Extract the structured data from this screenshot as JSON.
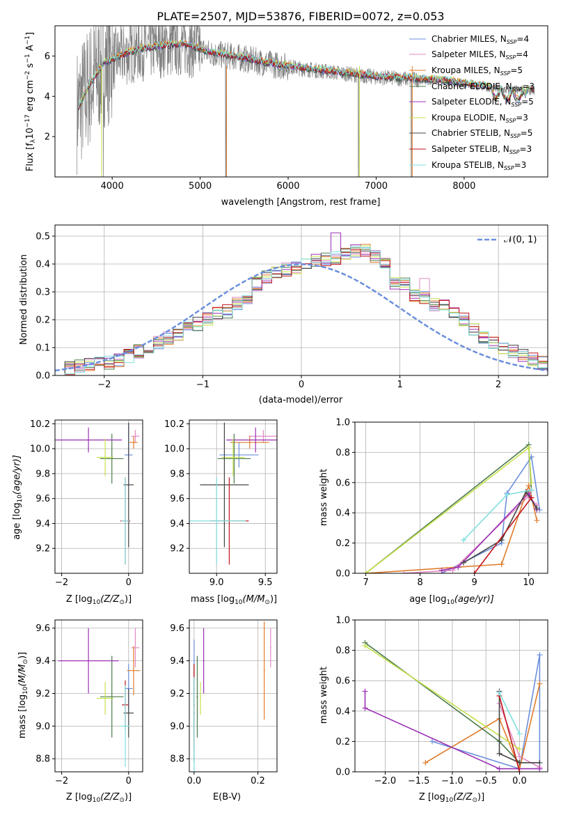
{
  "title": "PLATE=2507, MJD=53876, FIBERID=0072, z=0.053",
  "colors": {
    "Chabrier MILES": "#6b8fdc",
    "Salpeter MILES": "#e28ac4",
    "Kroupa MILES": "#e07b2a",
    "Chabrier ELODIE": "#4a7a4a",
    "Salpeter ELODIE": "#9b2fb4",
    "Kroupa ELODIE": "#c6e04a",
    "Chabrier STELIB": "#444444",
    "Salpeter STELIB": "#c0161b",
    "Kroupa STELIB": "#7fdede",
    "data": "#808080"
  },
  "legend_labels": {
    "l0": "Chabrier MILES, N",
    "l1": "Salpeter MILES, N",
    "l2": "Kroupa MILES, N",
    "l3": "Chabrier ELODIE, N",
    "l4": "Salpeter ELODIE, N",
    "l5": "Kroupa ELODIE, N",
    "l6": "Chabrier STELIB, N",
    "l7": "Salpeter STELIB, N",
    "l8": "Kroupa STELIB, N",
    "sub": "SSP",
    "n0": "=4",
    "n1": "=4",
    "n2": "=5",
    "n3": "=3",
    "n4": "=5",
    "n5": "=3",
    "n6": "=5",
    "n7": "=3",
    "n8": "=3"
  },
  "labels": {
    "spec_xlabel": "wavelength [Angstrom, rest frame]",
    "spec_ylabel": "Flux [f",
    "spec_ylabel_sub": "λ",
    "spec_ylabel_rest": "10",
    "spec_ylabel_exp1": "−17",
    "spec_ylabel_mid": " erg cm",
    "spec_ylabel_exp2": "−2",
    "spec_ylabel_mid2": " s",
    "spec_ylabel_exp3": "−1",
    "spec_ylabel_mid3": " A",
    "spec_ylabel_exp4": "−1",
    "spec_ylabel_end": "]",
    "hist_xlabel": "(data-model)/error",
    "hist_ylabel": "Normed distribution",
    "hist_legend": "𝒩(0, 1)",
    "age_label": "age  [log",
    "age_label_sub": "10",
    "age_label_end": "(age/yr)]",
    "z_label": "Z [log",
    "z_label_sub": "10",
    "z_label_mid": "(Z/Z",
    "z_label_sub2": "⊙",
    "z_label_end": ")]",
    "mass_label": "mass [log",
    "mass_label_sub": "10",
    "mass_label_mid": "(M/M",
    "mass_label_sub2": "⊙",
    "mass_label_end": ")]",
    "ebv_label": "E(B-V)",
    "mw_label": "mass weight"
  },
  "chart_data": [
    {
      "id": "spectrum",
      "type": "line",
      "title": "PLATE=2507, MJD=53876, FIBERID=0072, z=0.053",
      "xlabel": "wavelength [Angstrom, rest frame]",
      "ylabel": "Flux [f_λ 10^-17 erg cm^-2 s^-1 A^-1]",
      "xlim": [
        3350,
        8950
      ],
      "ylim": [
        0,
        7.5
      ],
      "xticks": [
        4000,
        5000,
        6000,
        7000,
        8000
      ],
      "yticks": [
        2,
        4,
        6
      ],
      "continuum": {
        "x": [
          3600,
          3750,
          3900,
          4100,
          4300,
          4600,
          4850,
          5100,
          5400,
          5800,
          6200,
          6600,
          7000,
          7400,
          7800,
          8200,
          8500,
          8800
        ],
        "y": [
          3.3,
          4.6,
          5.6,
          6.0,
          6.3,
          6.5,
          6.55,
          6.15,
          5.95,
          5.6,
          5.35,
          5.15,
          4.95,
          4.85,
          4.75,
          4.5,
          4.3,
          4.3
        ]
      },
      "legend": [
        "Chabrier MILES",
        "Salpeter MILES",
        "Kroupa MILES",
        "Chabrier ELODIE",
        "Salpeter ELODIE",
        "Kroupa ELODIE",
        "Chabrier STELIB",
        "Salpeter STELIB",
        "Kroupa STELIB"
      ],
      "n_ssp": [
        4,
        4,
        5,
        3,
        5,
        3,
        5,
        3,
        3
      ],
      "legend_loc": "right"
    },
    {
      "id": "residuals",
      "type": "bar",
      "xlabel": "(data-model)/error",
      "ylabel": "Normed distribution",
      "xlim": [
        -2.5,
        2.5
      ],
      "ylim": [
        0,
        0.54
      ],
      "xticks": [
        -2,
        -1,
        0,
        1,
        2
      ],
      "yticks": [
        0.0,
        0.1,
        0.2,
        0.3,
        0.4,
        0.5
      ],
      "bin_edges_start": -2.5,
      "bin_width": 0.1,
      "base_profile": [
        0.022,
        0.028,
        0.033,
        0.041,
        0.043,
        0.045,
        0.055,
        0.07,
        0.087,
        0.095,
        0.118,
        0.135,
        0.148,
        0.17,
        0.185,
        0.205,
        0.22,
        0.23,
        0.26,
        0.28,
        0.33,
        0.355,
        0.365,
        0.38,
        0.39,
        0.405,
        0.41,
        0.415,
        0.42,
        0.44,
        0.445,
        0.45,
        0.43,
        0.41,
        0.33,
        0.325,
        0.29,
        0.28,
        0.255,
        0.25,
        0.23,
        0.2,
        0.17,
        0.14,
        0.12,
        0.1,
        0.085,
        0.07,
        0.056,
        0.045
      ],
      "gaussian_label": "𝒩(0, 1)"
    },
    {
      "id": "z_age",
      "type": "scatter",
      "xlabel": "Z [log10(Z/Z⊙)]",
      "ylabel": "age [log10(age/yr)]",
      "xlim": [
        -2.2,
        0.42
      ],
      "ylim": [
        9.0,
        10.23
      ],
      "xticks": [
        -2,
        0
      ],
      "yticks": [
        9.2,
        9.4,
        9.6,
        9.8,
        10.0,
        10.2
      ]
    },
    {
      "id": "mass_age",
      "type": "scatter",
      "xlabel": "mass [log10(M/M⊙)]",
      "ylabel": "",
      "xlim": [
        8.72,
        9.62
      ],
      "ylim": [
        9.0,
        10.23
      ],
      "xticks": [
        9.0,
        9.5
      ],
      "yticks": [
        9.2,
        9.4,
        9.6,
        9.8,
        10.0,
        10.2
      ]
    },
    {
      "id": "age_weight",
      "type": "line",
      "xlabel": "age [log10(age/yr)]",
      "ylabel": "mass weight",
      "xlim": [
        6.8,
        10.35
      ],
      "ylim": [
        0,
        1.0
      ],
      "xticks": [
        7,
        8,
        9,
        10
      ],
      "yticks": [
        0.0,
        0.2,
        0.4,
        0.6,
        0.8,
        1.0
      ]
    },
    {
      "id": "z_mass",
      "type": "scatter",
      "xlabel": "Z [log10(Z/Z⊙)]",
      "ylabel": "mass [log10(M/M⊙)]",
      "xlim": [
        -2.2,
        0.42
      ],
      "ylim": [
        8.72,
        9.65
      ],
      "xticks": [
        -2,
        0
      ],
      "yticks": [
        8.8,
        9.0,
        9.2,
        9.4,
        9.6
      ]
    },
    {
      "id": "ebv_mass",
      "type": "scatter",
      "xlabel": "E(B-V)",
      "ylabel": "",
      "xlim": [
        -0.015,
        0.26
      ],
      "ylim": [
        8.72,
        9.65
      ],
      "xticks": [
        0.0,
        0.2
      ],
      "yticks": [
        8.8,
        9.0,
        9.2,
        9.4,
        9.6
      ]
    },
    {
      "id": "z_weight",
      "type": "line",
      "xlabel": "Z [log10(Z/Z⊙)]",
      "ylabel": "mass weight",
      "xlim": [
        -2.45,
        0.42
      ],
      "ylim": [
        0,
        1.0
      ],
      "xticks": [
        -2.0,
        -1.5,
        -1.0,
        -0.5,
        0.0
      ],
      "yticks": [
        0.0,
        0.2,
        0.4,
        0.6,
        0.8,
        1.0
      ]
    }
  ],
  "fits": [
    {
      "model": "Chabrier MILES",
      "Z": 0.0,
      "age": 9.95,
      "mass": 9.23,
      "ebv": 0.0,
      "age_pts": [
        [
          8.4,
          0.0
        ],
        [
          9.5,
          0.2
        ],
        [
          9.6,
          0.53
        ],
        [
          10.05,
          0.77
        ],
        [
          10.2,
          0.42
        ]
      ],
      "z_pts": [
        [
          -1.3,
          0.2
        ],
        [
          0.0,
          0.02
        ],
        [
          0.3,
          0.77
        ],
        [
          0.3,
          0.02
        ]
      ]
    },
    {
      "model": "Salpeter MILES",
      "Z": 0.2,
      "age": 10.1,
      "mass": 9.48,
      "ebv": 0.24,
      "age_pts": [
        [
          7.7,
          0.0
        ],
        [
          8.6,
          0.02
        ],
        [
          10.0,
          0.51
        ],
        [
          10.15,
          0.45
        ]
      ],
      "z_pts": [
        [
          -0.3,
          0.45
        ],
        [
          0.0,
          0.1
        ],
        [
          0.3,
          0.03
        ]
      ]
    },
    {
      "model": "Kroupa MILES",
      "Z": 0.15,
      "age": 10.05,
      "mass": 9.34,
      "ebv": 0.22,
      "age_pts": [
        [
          7.0,
          0.0
        ],
        [
          9.5,
          0.06
        ],
        [
          10.0,
          0.58
        ],
        [
          10.15,
          0.35
        ]
      ],
      "z_pts": [
        [
          -1.4,
          0.06
        ],
        [
          -0.3,
          0.35
        ],
        [
          0.0,
          0.02
        ],
        [
          0.3,
          0.58
        ]
      ]
    },
    {
      "model": "Chabrier ELODIE",
      "Z": -0.5,
      "age": 9.92,
      "mass": 9.18,
      "ebv": 0.01,
      "age_pts": [
        [
          7.0,
          0.0
        ],
        [
          10.0,
          0.85
        ],
        [
          10.05,
          0.55
        ]
      ],
      "z_pts": [
        [
          -2.3,
          0.85
        ],
        [
          -0.3,
          0.2
        ],
        [
          0.0,
          0.06
        ]
      ]
    },
    {
      "model": "Salpeter ELODIE",
      "Z": -1.2,
      "age": 10.07,
      "mass": 9.4,
      "ebv": 0.03,
      "age_pts": [
        [
          8.4,
          0.02
        ],
        [
          8.7,
          0.04
        ],
        [
          10.0,
          0.53
        ],
        [
          10.15,
          0.42
        ]
      ],
      "z_pts": [
        [
          -2.3,
          0.53
        ],
        [
          -2.3,
          0.42
        ],
        [
          -0.3,
          0.02
        ],
        [
          0.3,
          0.02
        ]
      ]
    },
    {
      "model": "Kroupa ELODIE",
      "Z": -0.7,
      "age": 9.93,
      "mass": 9.17,
      "ebv": 0.02,
      "age_pts": [
        [
          7.0,
          0.0
        ],
        [
          10.0,
          0.83
        ],
        [
          10.05,
          0.6
        ]
      ],
      "z_pts": [
        [
          -2.3,
          0.83
        ],
        [
          0.0,
          0.15
        ]
      ]
    },
    {
      "model": "Chabrier STELIB",
      "Z": 0.0,
      "age": 9.71,
      "mass": 9.08,
      "ebv": 0.0,
      "age_pts": [
        [
          8.8,
          0.07
        ],
        [
          9.5,
          0.22
        ],
        [
          9.95,
          0.54
        ],
        [
          10.15,
          0.43
        ]
      ],
      "z_pts": [
        [
          -0.3,
          0.53
        ],
        [
          -0.3,
          0.12
        ],
        [
          0.0,
          0.06
        ],
        [
          0.3,
          0.06
        ]
      ]
    },
    {
      "model": "Salpeter STELIB",
      "Z": -0.1,
      "age": 9.42,
      "mass": 9.13,
      "ebv": 0.0,
      "age_pts": [
        [
          9.0,
          0.0
        ],
        [
          10.05,
          0.5
        ]
      ],
      "z_pts": [
        [
          -0.3,
          0.5
        ],
        [
          0.0,
          0.0
        ]
      ]
    },
    {
      "model": "Kroupa STELIB",
      "Z": -0.1,
      "age": 9.42,
      "mass": 9.0,
      "ebv": 0.0,
      "age_pts": [
        [
          8.8,
          0.22
        ],
        [
          9.6,
          0.52
        ],
        [
          10.05,
          0.55
        ]
      ],
      "z_pts": [
        [
          -0.3,
          0.52
        ],
        [
          0.0,
          0.25
        ]
      ]
    }
  ]
}
